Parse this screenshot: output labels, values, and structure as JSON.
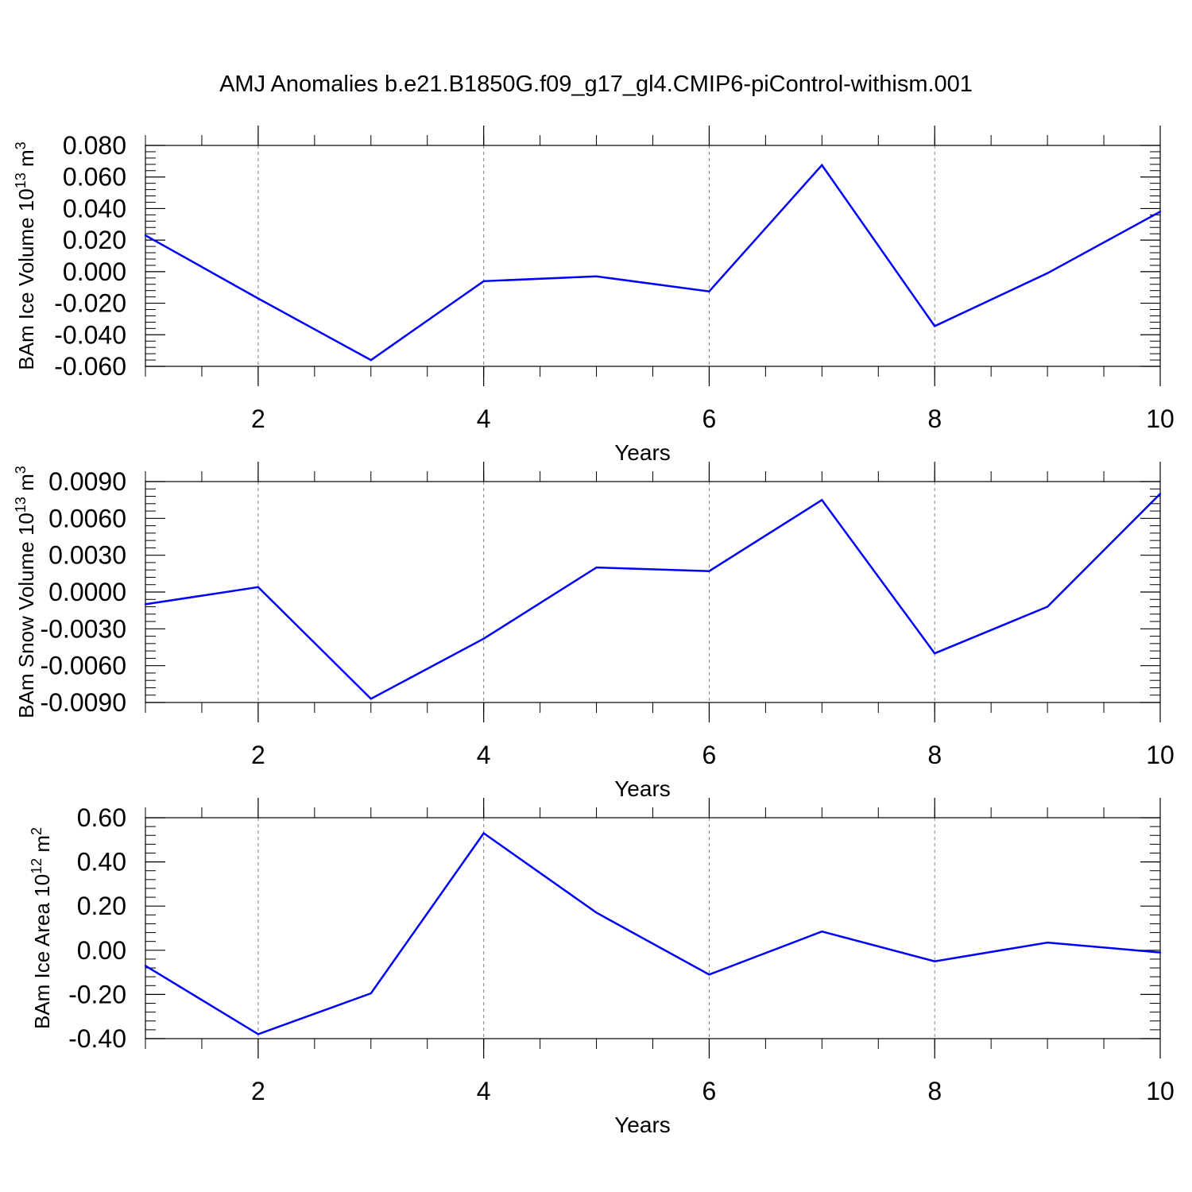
{
  "title": "AMJ Anomalies b.e21.B1850G.f09_g17_gl4.CMIP6-piControl-withism.001",
  "colors": {
    "line": "#0000ff",
    "axis": "#000000",
    "grid": "#808080"
  },
  "chart_data": [
    {
      "type": "line",
      "ylabel": {
        "prefix": "BAm Ice Volume 10",
        "exponent": "13",
        "unit": " m",
        "unit_exponent": "3"
      },
      "xlabel": "Years",
      "xlim": [
        1,
        10
      ],
      "xticks": [
        "2",
        "4",
        "6",
        "8",
        "10"
      ],
      "ylim": [
        -0.06,
        0.08
      ],
      "yticks": [
        "-0.060",
        "-0.040",
        "-0.020",
        "0.000",
        "0.020",
        "0.040",
        "0.060",
        "0.080"
      ],
      "x": [
        1,
        2,
        3,
        4,
        5,
        6,
        7,
        8,
        9,
        10
      ],
      "values": [
        0.023,
        -0.017,
        -0.056,
        -0.006,
        -0.003,
        -0.0125,
        0.0675,
        -0.0345,
        -0.001,
        0.038
      ],
      "grid": "vertical dashed at major x ticks"
    },
    {
      "type": "line",
      "ylabel": {
        "prefix": "BAm Snow Volume 10",
        "exponent": "13",
        "unit": " m",
        "unit_exponent": "3"
      },
      "xlabel": "Years",
      "xlim": [
        1,
        10
      ],
      "xticks": [
        "2",
        "4",
        "6",
        "8",
        "10"
      ],
      "ylim": [
        -0.009,
        0.009
      ],
      "yticks": [
        "-0.0090",
        "-0.0060",
        "-0.0030",
        "0.0000",
        "0.0030",
        "0.0060",
        "0.0090"
      ],
      "x": [
        1,
        2,
        3,
        4,
        5,
        6,
        7,
        8,
        9,
        10
      ],
      "values": [
        -0.001,
        0.0004,
        -0.0087,
        -0.0038,
        0.002,
        0.0017,
        0.0075,
        -0.005,
        -0.0012,
        0.008
      ],
      "grid": "vertical dashed at major x ticks"
    },
    {
      "type": "line",
      "ylabel": {
        "prefix": "BAm Ice Area 10",
        "exponent": "12",
        "unit": " m",
        "unit_exponent": "2"
      },
      "xlabel": "Years",
      "xlim": [
        1,
        10
      ],
      "xticks": [
        "2",
        "4",
        "6",
        "8",
        "10"
      ],
      "ylim": [
        -0.4,
        0.6
      ],
      "yticks": [
        "-0.40",
        "-0.20",
        "0.00",
        "0.20",
        "0.40",
        "0.60"
      ],
      "x": [
        1,
        2,
        3,
        4,
        5,
        6,
        7,
        8,
        9,
        10
      ],
      "values": [
        -0.07,
        -0.38,
        -0.195,
        0.53,
        0.17,
        -0.11,
        0.085,
        -0.05,
        0.035,
        -0.01
      ],
      "grid": "vertical dashed at major x ticks"
    }
  ]
}
